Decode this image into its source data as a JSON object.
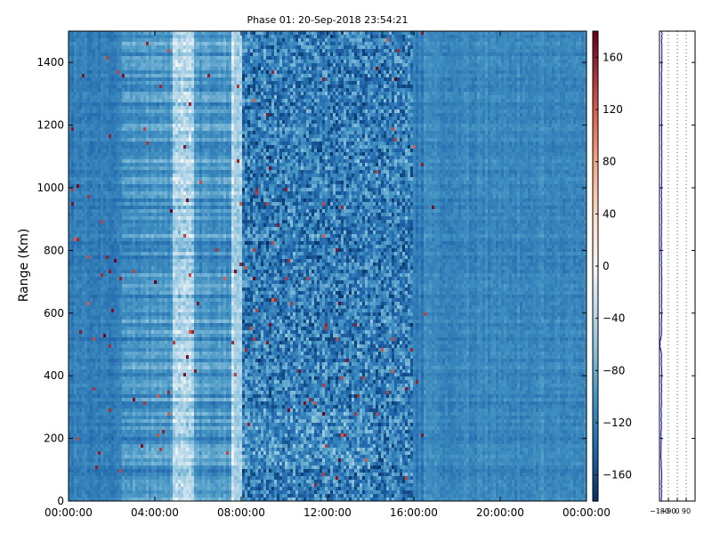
{
  "chart_data": [
    {
      "type": "heatmap",
      "title": "Phase 01: 20-Sep-2018 23:54:21",
      "xlabel": "",
      "ylabel": "Range (Km)",
      "x_ticks": [
        "00:00:00",
        "04:00:00",
        "08:00:00",
        "12:00:00",
        "16:00:00",
        "20:00:00",
        "00:00:00"
      ],
      "x_tick_hours": [
        0,
        4,
        8,
        12,
        16,
        20,
        24
      ],
      "xlim_hours": [
        0,
        24
      ],
      "y_ticks": [
        0,
        200,
        400,
        600,
        800,
        1000,
        1200,
        1400
      ],
      "ylim": [
        0,
        1500
      ],
      "colormap": "RdBu_r",
      "colorbar": {
        "ticks": [
          -160,
          -120,
          -80,
          -40,
          0,
          40,
          80,
          120,
          160
        ],
        "range": [
          -180,
          180
        ]
      },
      "colors": {
        "low": "#0a2d5e",
        "mid_low": "#5b9bcc",
        "zero": "#f7f7f7",
        "high": "#b0182c"
      },
      "description_values": {
        "dominant_phase": -120,
        "bright_band_hours": [
          4.8,
          5.8
        ],
        "bright_band_2_hours": [
          7.6,
          8.0
        ],
        "noisy_region_hours": [
          8.0,
          16.0
        ],
        "low_range_band_km": [
          100,
          300
        ]
      }
    },
    {
      "type": "line",
      "xlabel": "",
      "ylabel": "",
      "x_ticks": [
        "−180",
        "−90",
        "0",
        "90"
      ],
      "x_tick_values": [
        -180,
        -90,
        0,
        90
      ],
      "xlim": [
        -180,
        180
      ],
      "ylim": [
        0,
        1500
      ],
      "grid": true,
      "line_color": "#0000cc",
      "approx_phase_profile": [
        {
          "range": 0,
          "value": -160
        },
        {
          "range": 100,
          "value": -158
        },
        {
          "range": 150,
          "value": -165
        },
        {
          "range": 200,
          "value": -162
        },
        {
          "range": 300,
          "value": -160
        },
        {
          "range": 400,
          "value": -158
        },
        {
          "range": 470,
          "value": -160
        },
        {
          "range": 490,
          "value": -175
        },
        {
          "range": 510,
          "value": -172
        },
        {
          "range": 530,
          "value": -160
        },
        {
          "range": 600,
          "value": -158
        },
        {
          "range": 700,
          "value": -157
        },
        {
          "range": 800,
          "value": -160
        },
        {
          "range": 900,
          "value": -158
        },
        {
          "range": 1000,
          "value": -159
        },
        {
          "range": 1100,
          "value": -157
        },
        {
          "range": 1200,
          "value": -158
        },
        {
          "range": 1300,
          "value": -158
        },
        {
          "range": 1400,
          "value": -157
        },
        {
          "range": 1500,
          "value": -156
        }
      ]
    }
  ]
}
